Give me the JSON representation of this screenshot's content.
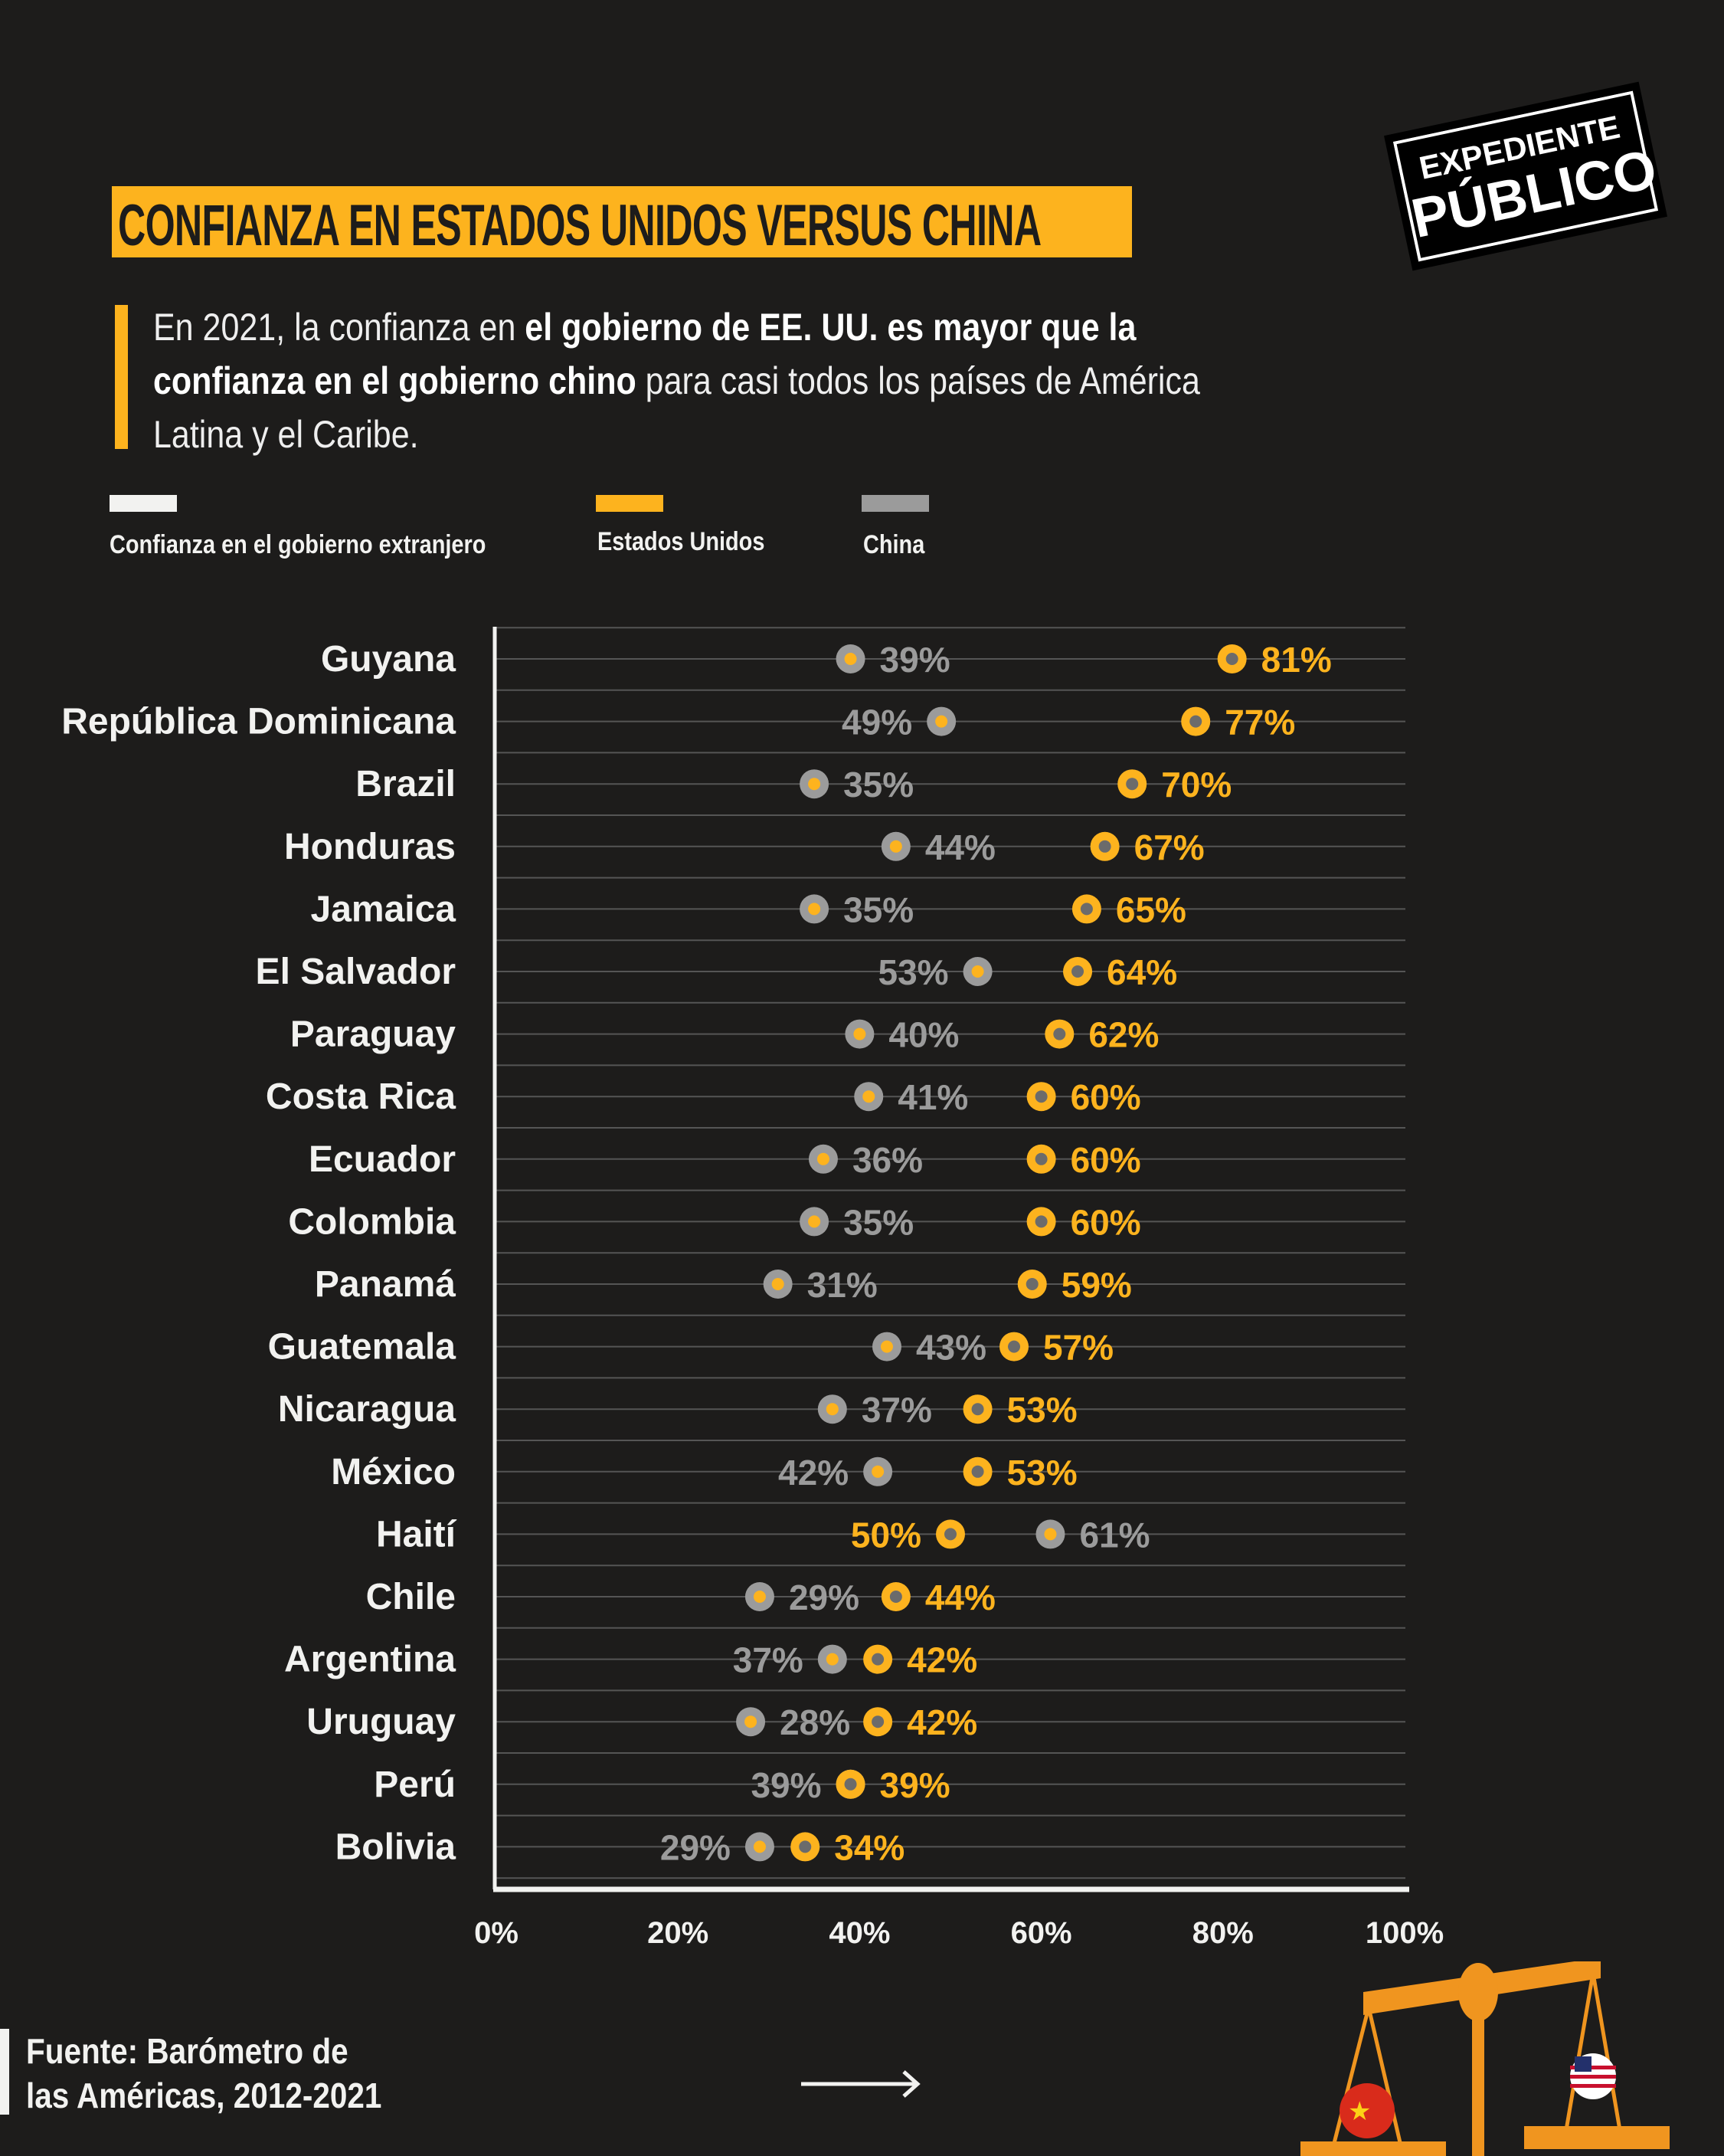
{
  "header": {
    "title": "CONFIANZA EN ESTADOS UNIDOS VERSUS CHINA",
    "subtitle_parts": [
      "En 2021, la confianza en ",
      "el gobierno de EE. UU. es mayor que la confianza en el gobierno chino",
      " para casi todos los países de América Latina y el Caribe."
    ]
  },
  "logo": {
    "line1": "EXPEDIENTE",
    "line2": "PÚBLICO"
  },
  "legend": [
    {
      "label": "Confianza en el gobierno extranjero",
      "color": "#f2f2f0"
    },
    {
      "label": "Estados Unidos",
      "color": "#fdb31e"
    },
    {
      "label": "China",
      "color": "#9b9b9b"
    }
  ],
  "chart_data": {
    "type": "dot",
    "title": "CONFIANZA EN ESTADOS UNIDOS VERSUS CHINA",
    "xlabel": "",
    "ylabel": "",
    "xlim": [
      0,
      100
    ],
    "x_ticks": [
      "0%",
      "20%",
      "40%",
      "60%",
      "80%",
      "100%"
    ],
    "x_tick_values": [
      0,
      20,
      40,
      60,
      80,
      100
    ],
    "categories": [
      "Guyana",
      "República Dominicana",
      "Brazil",
      "Honduras",
      "Jamaica",
      "El Salvador",
      "Paraguay",
      "Costa Rica",
      "Ecuador",
      "Colombia",
      "Panamá",
      "Guatemala",
      "Nicaragua",
      "México",
      "Haití",
      "Chile",
      "Argentina",
      "Uruguay",
      "Perú",
      "Bolivia"
    ],
    "series": [
      {
        "name": "Estados Unidos",
        "color": "#fdb31e",
        "values": [
          81,
          77,
          70,
          67,
          65,
          64,
          62,
          60,
          60,
          60,
          59,
          57,
          53,
          53,
          50,
          44,
          42,
          42,
          39,
          34
        ]
      },
      {
        "name": "China",
        "color": "#9b9b9b",
        "values": [
          39,
          49,
          35,
          44,
          35,
          53,
          40,
          41,
          36,
          35,
          31,
          43,
          37,
          42,
          61,
          29,
          37,
          28,
          39,
          29
        ]
      }
    ],
    "grid": true
  },
  "footer": {
    "source_line1": "Fuente: Barómetro de",
    "source_line2": "las Américas, 2012-2021"
  }
}
